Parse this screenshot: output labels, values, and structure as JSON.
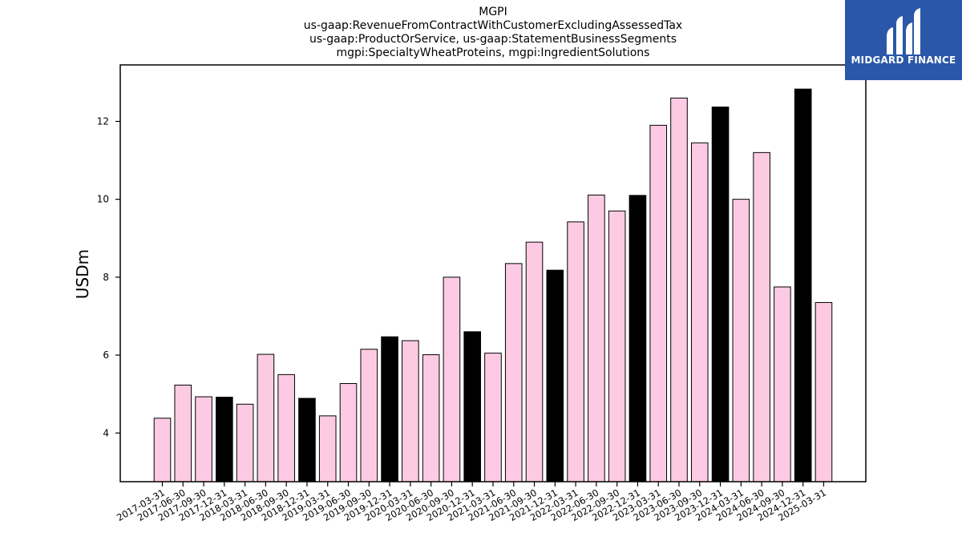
{
  "chart_data": {
    "type": "bar",
    "title": [
      "MGPI",
      "us-gaap:RevenueFromContractWithCustomerExcludingAssessedTax",
      "us-gaap:ProductOrService, us-gaap:StatementBusinessSegments",
      "mgpi:SpecialtyWheatProteins, mgpi:IngredientSolutions"
    ],
    "xlabel": "",
    "ylabel": "USDm",
    "ylim": [
      2.75,
      13.45
    ],
    "yticks": [
      4,
      6,
      8,
      10,
      12
    ],
    "categories": [
      "2017-03-31",
      "2017-06-30",
      "2017-09-30",
      "2017-12-31",
      "2018-03-31",
      "2018-06-30",
      "2018-09-30",
      "2018-12-31",
      "2019-03-31",
      "2019-06-30",
      "2019-09-30",
      "2019-12-31",
      "2020-03-31",
      "2020-06-30",
      "2020-09-30",
      "2020-12-31",
      "2021-03-31",
      "2021-06-30",
      "2021-09-30",
      "2021-12-31",
      "2022-03-31",
      "2022-06-30",
      "2022-09-30",
      "2022-12-31",
      "2023-03-31",
      "2023-06-30",
      "2023-09-30",
      "2023-12-31",
      "2024-03-31",
      "2024-06-30",
      "2024-09-30",
      "2024-12-31",
      "2025-03-31"
    ],
    "values": [
      4.38,
      5.23,
      4.93,
      4.92,
      4.74,
      6.02,
      5.5,
      4.89,
      4.44,
      5.27,
      6.15,
      6.47,
      6.37,
      6.01,
      8.0,
      6.6,
      6.05,
      8.35,
      8.9,
      8.18,
      9.42,
      10.11,
      9.7,
      10.1,
      11.9,
      12.6,
      11.45,
      12.37,
      10.0,
      11.2,
      7.75,
      12.83,
      7.35
    ],
    "highlight": [
      false,
      false,
      false,
      true,
      false,
      false,
      false,
      true,
      false,
      false,
      false,
      true,
      false,
      false,
      false,
      true,
      false,
      false,
      false,
      true,
      false,
      false,
      false,
      true,
      false,
      false,
      false,
      true,
      false,
      false,
      false,
      true,
      false
    ],
    "colors": {
      "bar": "#fccbe3",
      "highlight": "#000000",
      "edge": "#000000"
    },
    "grid": false,
    "legend": "none"
  },
  "logo": {
    "text": "MIDGARD FINANCE",
    "bg": "#2a57a8"
  }
}
